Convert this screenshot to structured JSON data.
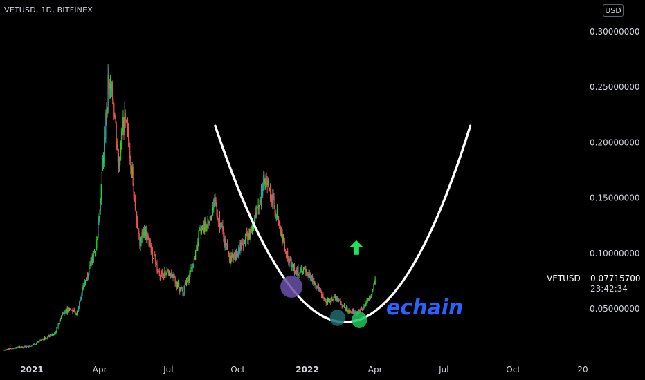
{
  "header": {
    "symbol": "VETUSD",
    "interval": "1D",
    "exchange": "BITFINEX",
    "currency": "USD"
  },
  "price_tag": {
    "symbol": "VETUSD",
    "last_price": "0.07715700",
    "countdown": "23:42:34"
  },
  "watermark": "echain",
  "colors": {
    "background": "#000000",
    "candle_up": "#26a69a",
    "candle_up_bright": "#22dd22",
    "candle_down": "#ef5350",
    "curve": "#ffffff",
    "arrow": "#1ce35a",
    "marker_purple": "#6a4fa8",
    "marker_teal": "#1d6b72",
    "marker_green": "#22c55e",
    "watermark": "#2962ff"
  },
  "chart_data": {
    "type": "candlestick",
    "title": "",
    "y_axis": {
      "range": [
        0,
        0.33
      ],
      "ticks": [
        "0.30000000",
        "0.25000000",
        "0.20000000",
        "0.15000000",
        "0.10000000",
        "0.05000000"
      ],
      "tick_values": [
        0.3,
        0.25,
        0.2,
        0.15,
        0.1,
        0.05
      ]
    },
    "x_axis": {
      "ticks": [
        "2021",
        "Apr",
        "Jul",
        "Oct",
        "2022",
        "Apr",
        "Jul",
        "Oct",
        "20"
      ],
      "tick_dates": [
        "2021-01-01",
        "2021-04-01",
        "2021-07-01",
        "2021-10-01",
        "2022-01-01",
        "2022-04-01",
        "2022-07-01",
        "2022-10-01",
        "2023-01-01"
      ],
      "range": [
        "2020-11-24",
        "2023-01-10"
      ]
    },
    "price_path": [
      [
        "2020-11-24",
        0.013
      ],
      [
        "2020-12-10",
        0.015
      ],
      [
        "2020-12-28",
        0.016
      ],
      [
        "2021-01-10",
        0.02
      ],
      [
        "2021-01-20",
        0.024
      ],
      [
        "2021-02-01",
        0.028
      ],
      [
        "2021-02-10",
        0.045
      ],
      [
        "2021-02-20",
        0.05
      ],
      [
        "2021-03-01",
        0.045
      ],
      [
        "2021-03-10",
        0.07
      ],
      [
        "2021-03-20",
        0.09
      ],
      [
        "2021-03-28",
        0.11
      ],
      [
        "2021-04-05",
        0.18
      ],
      [
        "2021-04-12",
        0.25
      ],
      [
        "2021-04-19",
        0.24
      ],
      [
        "2021-04-26",
        0.18
      ],
      [
        "2021-05-03",
        0.22
      ],
      [
        "2021-05-10",
        0.2
      ],
      [
        "2021-05-17",
        0.15
      ],
      [
        "2021-05-24",
        0.11
      ],
      [
        "2021-05-31",
        0.12
      ],
      [
        "2021-06-10",
        0.1
      ],
      [
        "2021-06-20",
        0.08
      ],
      [
        "2021-07-01",
        0.085
      ],
      [
        "2021-07-10",
        0.075
      ],
      [
        "2021-07-20",
        0.065
      ],
      [
        "2021-08-01",
        0.085
      ],
      [
        "2021-08-10",
        0.115
      ],
      [
        "2021-08-20",
        0.125
      ],
      [
        "2021-09-01",
        0.145
      ],
      [
        "2021-09-10",
        0.12
      ],
      [
        "2021-09-20",
        0.095
      ],
      [
        "2021-10-01",
        0.1
      ],
      [
        "2021-10-10",
        0.115
      ],
      [
        "2021-10-20",
        0.12
      ],
      [
        "2021-10-28",
        0.145
      ],
      [
        "2021-11-06",
        0.17
      ],
      [
        "2021-11-15",
        0.15
      ],
      [
        "2021-11-25",
        0.125
      ],
      [
        "2021-12-05",
        0.1
      ],
      [
        "2021-12-15",
        0.085
      ],
      [
        "2021-12-25",
        0.085
      ],
      [
        "2022-01-05",
        0.08
      ],
      [
        "2022-01-15",
        0.07
      ],
      [
        "2022-01-25",
        0.055
      ],
      [
        "2022-02-05",
        0.06
      ],
      [
        "2022-02-15",
        0.055
      ],
      [
        "2022-02-25",
        0.048
      ],
      [
        "2022-03-05",
        0.047
      ],
      [
        "2022-03-15",
        0.05
      ],
      [
        "2022-03-25",
        0.06
      ],
      [
        "2022-04-01",
        0.077
      ]
    ],
    "annotations": {
      "u_curve": [
        [
          "2021-09-01",
          0.215
        ],
        [
          "2022-02-20",
          0.038
        ],
        [
          "2022-08-05",
          0.215
        ]
      ],
      "markers": [
        {
          "date": "2021-12-11",
          "value": 0.07,
          "color": "purple"
        },
        {
          "date": "2022-02-10",
          "value": 0.042,
          "color": "teal"
        },
        {
          "date": "2022-03-11",
          "value": 0.04,
          "color": "green"
        }
      ],
      "arrow": {
        "date": "2022-03-07",
        "value": 0.105
      }
    }
  }
}
